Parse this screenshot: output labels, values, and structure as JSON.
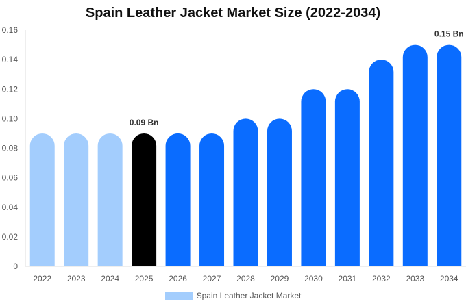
{
  "chart_data": {
    "type": "bar",
    "title": "Spain Leather Jacket Market Size (2022-2034)",
    "categories": [
      "2022",
      "2023",
      "2024",
      "2025",
      "2026",
      "2027",
      "2028",
      "2029",
      "2030",
      "2031",
      "2032",
      "2033",
      "2034"
    ],
    "series": [
      {
        "name": "Spain Leather Jacket Market",
        "values": [
          0.09,
          0.09,
          0.09,
          0.09,
          0.09,
          0.09,
          0.1,
          0.1,
          0.12,
          0.12,
          0.14,
          0.15,
          0.15
        ]
      }
    ],
    "ylim": [
      0,
      0.16
    ],
    "yticks": [
      "0",
      "0.02",
      "0.04",
      "0.06",
      "0.08",
      "0.10",
      "0.12",
      "0.14",
      "0.16"
    ],
    "data_labels": [
      {
        "category": "2025",
        "text": "0.09 Bn"
      },
      {
        "category": "2034",
        "text": "0.15 Bn"
      }
    ],
    "bar_colors": {
      "historical": "#a3cdfd",
      "current": "#000000",
      "forecast": "#0a6cff"
    },
    "historical_categories": [
      "2022",
      "2023",
      "2024"
    ],
    "current_category": "2025",
    "grid": false,
    "legend_position": "bottom",
    "legend_color": "#a3cdfd"
  }
}
